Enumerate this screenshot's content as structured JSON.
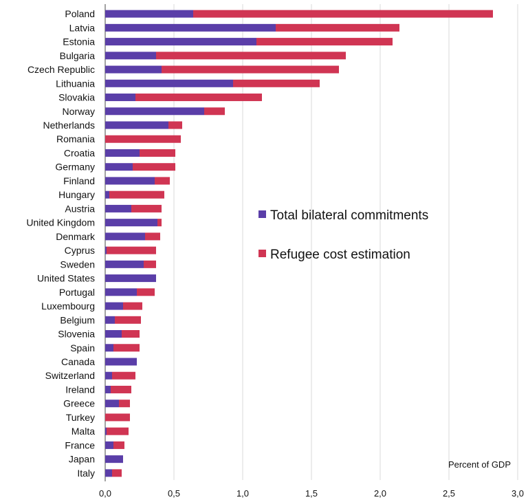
{
  "chart_data": {
    "type": "bar",
    "orientation": "horizontal",
    "stacked": true,
    "categories": [
      "Poland",
      "Latvia",
      "Estonia",
      "Bulgaria",
      "Czech Republic",
      "Lithuania",
      "Slovakia",
      "Norway",
      "Netherlands",
      "Romania",
      "Croatia",
      "Germany",
      "Finland",
      "Hungary",
      "Austria",
      "United Kingdom",
      "Denmark",
      "Cyprus",
      "Sweden",
      "United States",
      "Portugal",
      "Luxembourg",
      "Belgium",
      "Slovenia",
      "Spain",
      "Canada",
      "Switzerland",
      "Ireland",
      "Greece",
      "Turkey",
      "Malta",
      "France",
      "Japan",
      "Italy"
    ],
    "series": [
      {
        "name": "Total bilateral commitments",
        "color": "#5a3ea8",
        "values": [
          0.64,
          1.24,
          1.1,
          0.37,
          0.41,
          0.93,
          0.22,
          0.72,
          0.46,
          0.0,
          0.25,
          0.2,
          0.36,
          0.03,
          0.19,
          0.38,
          0.29,
          0.01,
          0.28,
          0.37,
          0.23,
          0.13,
          0.07,
          0.12,
          0.06,
          0.23,
          0.05,
          0.04,
          0.1,
          0.0,
          0.01,
          0.06,
          0.13,
          0.05
        ]
      },
      {
        "name": "Refugee cost estimation",
        "color": "#d03553",
        "values": [
          2.18,
          0.9,
          0.99,
          1.38,
          1.29,
          0.63,
          0.92,
          0.15,
          0.1,
          0.55,
          0.26,
          0.31,
          0.11,
          0.4,
          0.22,
          0.03,
          0.11,
          0.36,
          0.09,
          0.0,
          0.13,
          0.14,
          0.19,
          0.13,
          0.19,
          0.0,
          0.17,
          0.15,
          0.08,
          0.18,
          0.16,
          0.08,
          0.0,
          0.07
        ]
      }
    ],
    "xlim": [
      0,
      3.0
    ],
    "xticks": [
      "0,0",
      "0,5",
      "1,0",
      "1,5",
      "2,0",
      "2,5",
      "3,0"
    ],
    "xtick_values": [
      0,
      0.5,
      1.0,
      1.5,
      2.0,
      2.5,
      3.0
    ],
    "unit_label": "Percent of GDP",
    "grid": "vertical",
    "legend": "center-right"
  }
}
